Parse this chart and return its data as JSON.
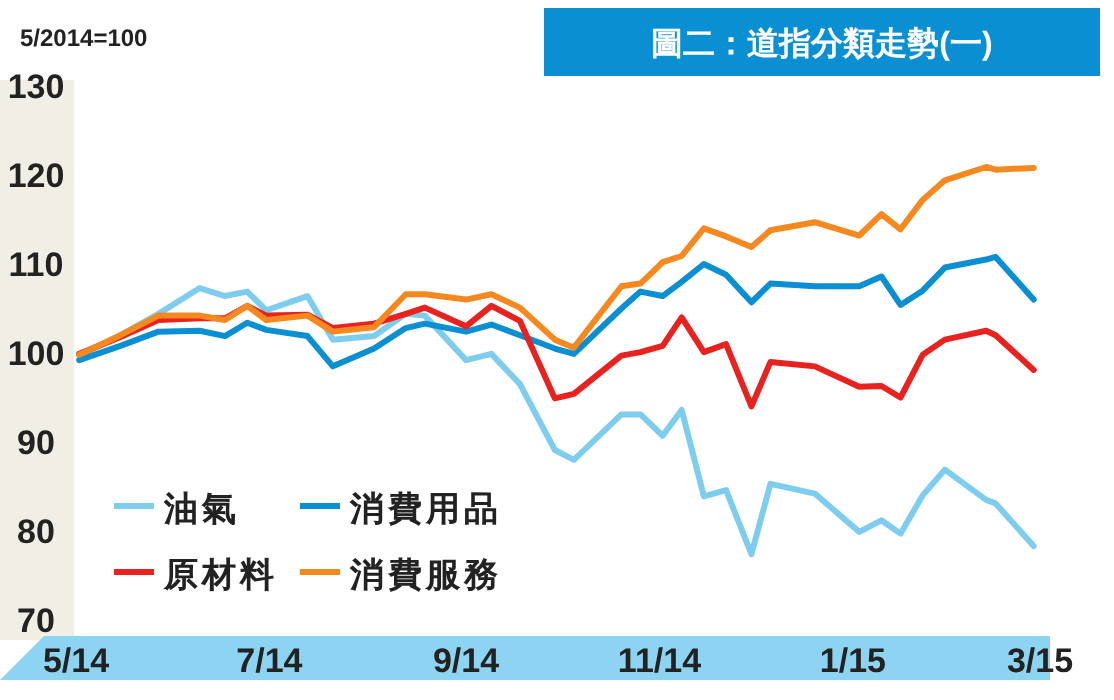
{
  "chart_data": {
    "type": "line",
    "title": "圖二：道指分類走勢(一)",
    "ylabel": "5/2014=100",
    "x": [
      "2014-05-02",
      "2014-05-15",
      "2014-05-27",
      "2014-06-09",
      "2014-06-17",
      "2014-06-24",
      "2014-06-30",
      "2014-07-13",
      "2014-07-21",
      "2014-08-03",
      "2014-08-13",
      "2014-08-19",
      "2014-09-01",
      "2014-09-09",
      "2014-09-18",
      "2014-09-29",
      "2014-10-05",
      "2014-10-20",
      "2014-10-26",
      "2014-11-02",
      "2014-11-08",
      "2014-11-15",
      "2014-11-22",
      "2014-11-30",
      "2014-12-06",
      "2014-12-20",
      "2015-01-03",
      "2015-01-10",
      "2015-01-16",
      "2015-01-23",
      "2015-01-30",
      "2015-02-12",
      "2015-02-15",
      "2015-02-27"
    ],
    "series": [
      {
        "name": "油氣",
        "color": "#7fcdee",
        "values": [
          99.7,
          102,
          104.4,
          107.3,
          106.4,
          106.9,
          104.8,
          106.4,
          101.5,
          101.9,
          104.4,
          104.2,
          99.2,
          99.9,
          96.5,
          89.1,
          88.0,
          93.1,
          93.1,
          90.7,
          93.6,
          83.9,
          84.6,
          77.4,
          85.3,
          84.2,
          79.9,
          81.2,
          79.7,
          84.0,
          86.9,
          83.5,
          83.1,
          78.3
        ]
      },
      {
        "name": "消費用品",
        "color": "#0a8fd3",
        "values": [
          99.2,
          100.8,
          102.4,
          102.5,
          101.9,
          103.4,
          102.6,
          101.9,
          98.5,
          100.5,
          102.8,
          103.3,
          102.4,
          103.2,
          102.0,
          100.5,
          99.9,
          105.0,
          106.9,
          106.4,
          108.0,
          110.0,
          108.8,
          105.7,
          107.8,
          107.5,
          107.5,
          108.6,
          105.4,
          107.0,
          109.6,
          110.5,
          110.8,
          106.0
        ]
      },
      {
        "name": "原材料",
        "color": "#e8231f",
        "values": [
          99.9,
          101.8,
          103.7,
          103.9,
          103.9,
          105.3,
          104.2,
          104.3,
          102.8,
          103.3,
          104.4,
          105.1,
          103.0,
          105.3,
          103.6,
          94.9,
          95.4,
          99.7,
          100.1,
          100.8,
          104.0,
          100.1,
          101.0,
          94.0,
          99.0,
          98.5,
          96.2,
          96.3,
          95.0,
          99.8,
          101.5,
          102.5,
          102.0,
          98.1
        ]
      },
      {
        "name": "消費服務",
        "color": "#f5891f",
        "values": [
          99.8,
          102,
          104.2,
          104.2,
          103.7,
          105.3,
          103.7,
          104.2,
          102.4,
          102.9,
          106.6,
          106.6,
          106.0,
          106.6,
          105.1,
          101.5,
          100.6,
          107.5,
          107.8,
          110.2,
          110.9,
          114.0,
          113.1,
          111.9,
          113.8,
          114.7,
          113.2,
          115.6,
          113.9,
          117.2,
          119.4,
          120.9,
          120.6,
          120.8
        ]
      }
    ],
    "xlim": [
      "2014-05-01",
      "2015-03-01"
    ],
    "xticks": [
      {
        "value": "2014-05-01",
        "label": "5/14"
      },
      {
        "value": "2014-07-01",
        "label": "7/14"
      },
      {
        "value": "2014-09-01",
        "label": "9/14"
      },
      {
        "value": "2014-11-01",
        "label": "11/14"
      },
      {
        "value": "2015-01-01",
        "label": "1/15"
      },
      {
        "value": "2015-03-01",
        "label": "3/15"
      }
    ],
    "ylim": [
      70,
      130
    ],
    "yticks": [
      70,
      80,
      90,
      100,
      110,
      120,
      130
    ],
    "grid": false,
    "legend": "bottom left"
  }
}
